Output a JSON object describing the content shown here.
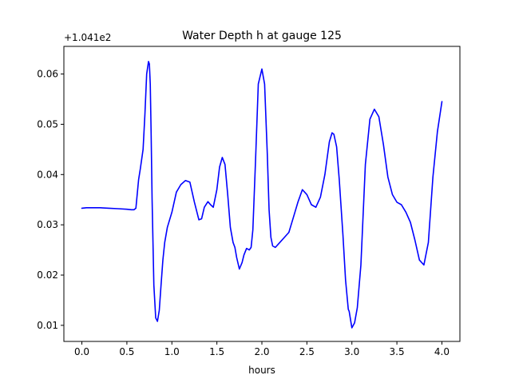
{
  "chart_data": {
    "type": "line",
    "title": "Water Depth h at gauge 125",
    "xlabel": "hours",
    "ylabel": "",
    "offset_label": "+1.041e2",
    "xlim": [
      -0.2,
      4.2
    ],
    "ylim": [
      0.0068,
      0.0655
    ],
    "x_ticks": [
      0.0,
      0.5,
      1.0,
      1.5,
      2.0,
      2.5,
      3.0,
      3.5,
      4.0
    ],
    "x_tick_labels": [
      "0.0",
      "0.5",
      "1.0",
      "1.5",
      "2.0",
      "2.5",
      "3.0",
      "3.5",
      "4.0"
    ],
    "y_ticks": [
      0.01,
      0.02,
      0.03,
      0.04,
      0.05,
      0.06
    ],
    "y_tick_labels": [
      "0.01",
      "0.02",
      "0.03",
      "0.04",
      "0.05",
      "0.06"
    ],
    "grid": false,
    "legend": "none",
    "line_color": "#0000ff",
    "series": [
      {
        "x": [
          0.0,
          0.05,
          0.1,
          0.2,
          0.3,
          0.4,
          0.5,
          0.55,
          0.58,
          0.6,
          0.63,
          0.65,
          0.68,
          0.7,
          0.72,
          0.74,
          0.75,
          0.76,
          0.77,
          0.78,
          0.8,
          0.82,
          0.84,
          0.86,
          0.88,
          0.9,
          0.92,
          0.95,
          1.0,
          1.05,
          1.1,
          1.15,
          1.2,
          1.25,
          1.3,
          1.33,
          1.36,
          1.4,
          1.43,
          1.46,
          1.5,
          1.53,
          1.56,
          1.59,
          1.62,
          1.65,
          1.68,
          1.7,
          1.72,
          1.75,
          1.78,
          1.8,
          1.83,
          1.86,
          1.88,
          1.9,
          1.93,
          1.96,
          2.0,
          2.03,
          2.06,
          2.08,
          2.1,
          2.12,
          2.15,
          2.2,
          2.25,
          2.3,
          2.35,
          2.4,
          2.45,
          2.5,
          2.55,
          2.6,
          2.65,
          2.7,
          2.75,
          2.78,
          2.8,
          2.83,
          2.86,
          2.9,
          2.93,
          2.96,
          2.97,
          3.0,
          3.03,
          3.06,
          3.1,
          3.15,
          3.2,
          3.25,
          3.3,
          3.35,
          3.4,
          3.45,
          3.5,
          3.55,
          3.6,
          3.65,
          3.7,
          3.75,
          3.8,
          3.85,
          3.9,
          3.95,
          4.0
        ],
        "y": [
          0.0333,
          0.0334,
          0.0334,
          0.0334,
          0.0333,
          0.0332,
          0.0331,
          0.033,
          0.033,
          0.0333,
          0.039,
          0.0412,
          0.045,
          0.052,
          0.06,
          0.0625,
          0.062,
          0.058,
          0.048,
          0.035,
          0.018,
          0.0115,
          0.0108,
          0.013,
          0.018,
          0.023,
          0.0265,
          0.0295,
          0.0325,
          0.0365,
          0.038,
          0.0388,
          0.0385,
          0.0345,
          0.031,
          0.0312,
          0.0335,
          0.0346,
          0.034,
          0.0335,
          0.037,
          0.0415,
          0.0434,
          0.042,
          0.036,
          0.0295,
          0.0265,
          0.0255,
          0.0235,
          0.0212,
          0.0225,
          0.024,
          0.0253,
          0.025,
          0.0255,
          0.029,
          0.043,
          0.058,
          0.061,
          0.058,
          0.044,
          0.033,
          0.0275,
          0.0258,
          0.0255,
          0.0265,
          0.0275,
          0.0285,
          0.0315,
          0.0345,
          0.037,
          0.036,
          0.034,
          0.0335,
          0.0355,
          0.04,
          0.0465,
          0.0483,
          0.048,
          0.0455,
          0.039,
          0.028,
          0.019,
          0.0132,
          0.0128,
          0.0095,
          0.0105,
          0.0135,
          0.022,
          0.042,
          0.051,
          0.053,
          0.0515,
          0.046,
          0.0395,
          0.036,
          0.0345,
          0.034,
          0.0325,
          0.0305,
          0.027,
          0.023,
          0.022,
          0.0265,
          0.0395,
          0.0485,
          0.0545
        ]
      }
    ]
  }
}
